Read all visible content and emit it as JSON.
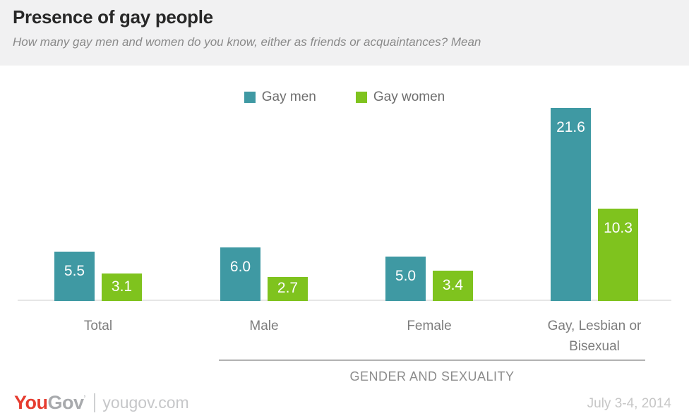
{
  "header": {
    "title": "Presence of gay people",
    "subtitle": "How many gay men and women do you know, either as friends or acquaintances? Mean"
  },
  "legend": [
    {
      "label": "Gay men",
      "color": "#3f99a3"
    },
    {
      "label": "Gay women",
      "color": "#7fc31e"
    }
  ],
  "chart_data": {
    "type": "bar",
    "categories": [
      "Total",
      "Male",
      "Female",
      "Gay, Lesbian or Bisexual"
    ],
    "series": [
      {
        "name": "Gay men",
        "color": "#3f99a3",
        "values": [
          5.5,
          6.0,
          5.0,
          21.6
        ]
      },
      {
        "name": "Gay women",
        "color": "#7fc31e",
        "values": [
          3.1,
          2.7,
          3.4,
          10.3
        ]
      }
    ],
    "title": "Presence of gay people",
    "xlabel": "GENDER AND SEXUALITY",
    "xlabel_applies_to": [
      "Male",
      "Female",
      "Gay, Lesbian or Bisexual"
    ],
    "ylabel": "",
    "ylim": [
      0,
      22
    ],
    "grid": false,
    "value_labels": true,
    "value_label_color": "#ffffff",
    "legend_position": "top-center"
  },
  "footer": {
    "logo_you": "You",
    "logo_gov": "Gov",
    "logo_domain": "yougov.com",
    "date": "July 3-4, 2014"
  }
}
